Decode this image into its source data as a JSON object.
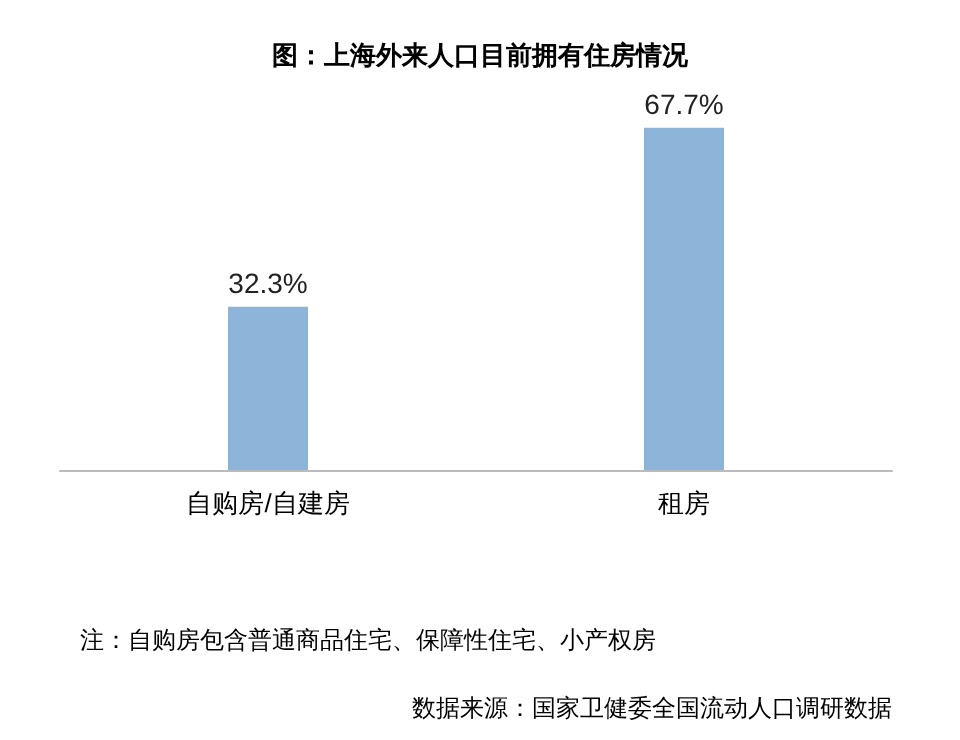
{
  "chart_data": {
    "type": "bar",
    "title": "图：上海外来人口目前拥有住房情况",
    "categories": [
      "自购房/自建房",
      "租房"
    ],
    "values": [
      32.3,
      67.7
    ],
    "color": "#8db4d9",
    "value_labels": [
      "32.3%",
      "67.7%"
    ],
    "annotations": [
      "注：自购房包含普通商品住宅、保障性住宅、小产权房",
      "数据来源：国家卫健委全国流动人口调研数据"
    ]
  }
}
